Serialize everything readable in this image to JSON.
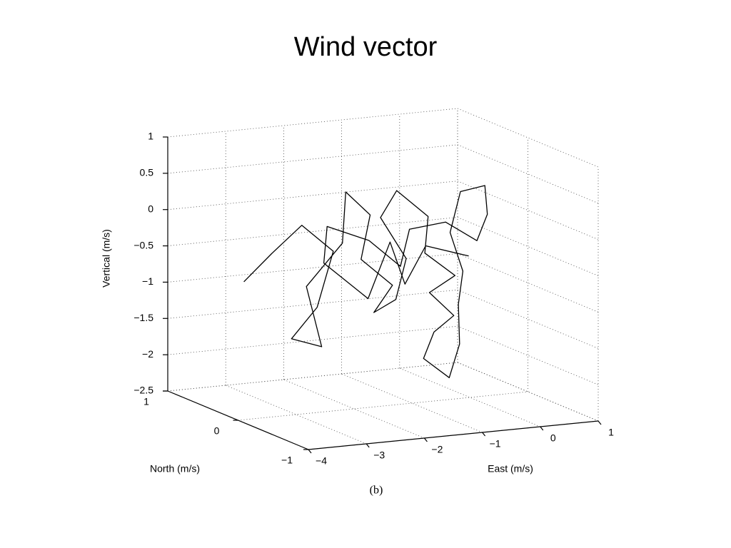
{
  "chart_data": {
    "type": "line3d",
    "title": "Wind vector",
    "xlabel": "East (m/s)",
    "ylabel": "North (m/s)",
    "zlabel": "Vertical (m/s)",
    "caption": "(b)",
    "color": "#000000",
    "grid": true,
    "xlim": [
      -4,
      1
    ],
    "ylim": [
      -1,
      1
    ],
    "zlim": [
      -2.5,
      1
    ],
    "xticks": [
      {
        "value": -4,
        "label": "−4"
      },
      {
        "value": -3,
        "label": "−3"
      },
      {
        "value": -2,
        "label": "−2"
      },
      {
        "value": -1,
        "label": "−1"
      },
      0,
      1
    ],
    "yticks": [
      {
        "value": -1,
        "label": "−1"
      },
      0,
      1
    ],
    "zticks": [
      {
        "value": -2.5,
        "label": "−2.5"
      },
      {
        "value": -2,
        "label": "−2"
      },
      {
        "value": -1.5,
        "label": "−1.5"
      },
      {
        "value": -1,
        "label": "−1"
      },
      {
        "value": -0.5,
        "label": "−0.5"
      },
      0,
      0.5,
      1
    ],
    "x": [
      -3.9,
      -3.3,
      -2.9,
      -2.6,
      -3.0,
      -3.2,
      -2.8,
      -2.7,
      -2.2,
      -1.9,
      -1.6,
      -2.0,
      -1.7,
      -1.9,
      -1.4,
      -1.1,
      -1.3,
      -0.9,
      -0.6,
      -0.9,
      -0.5,
      -0.7,
      -0.4,
      -0.5,
      -0.8,
      -0.6,
      -0.3,
      -0.2,
      0.0,
      -0.1,
      0.2,
      0.5,
      0.3,
      0.0,
      -0.3,
      -0.8,
      -1.2,
      -1.5,
      -2.1,
      -2.4,
      -2.0,
      -1.5,
      -1.0,
      -0.4,
      0.1
    ],
    "y": [
      0,
      0.1,
      0,
      -0.2,
      -0.3,
      -0.1,
      -0.2,
      0.1,
      0,
      0.2,
      0.1,
      -0.1,
      -0.3,
      -0.2,
      -0.1,
      0,
      0.2,
      0.3,
      0.1,
      -0.1,
      -0.2,
      0,
      -0.1,
      0.1,
      0,
      -0.2,
      -0.1,
      0,
      0.1,
      0.2,
      0.3,
      0.2,
      0,
      -0.1,
      0.1,
      0.2,
      0,
      0.2,
      0.3,
      0.1,
      -0.2,
      -0.1,
      0.1,
      0.3,
      0.1
    ],
    "z": [
      -0.6,
      -0.3,
      0.1,
      -0.2,
      -0.9,
      -1.4,
      -1.5,
      -0.8,
      -0.2,
      0.4,
      0.1,
      -0.4,
      -0.7,
      -1.1,
      -1.0,
      -0.5,
      0.0,
      0.3,
      0.0,
      -0.4,
      -0.7,
      -1.0,
      -1.3,
      -1.6,
      -1.9,
      -2.1,
      -1.7,
      -1.2,
      -0.8,
      -0.3,
      0.2,
      0.3,
      0.0,
      -0.3,
      -0.1,
      -0.2,
      -0.6,
      -0.3,
      -0.1,
      -0.5,
      -0.9,
      -0.2,
      -0.9,
      -0.5,
      -0.6
    ]
  }
}
